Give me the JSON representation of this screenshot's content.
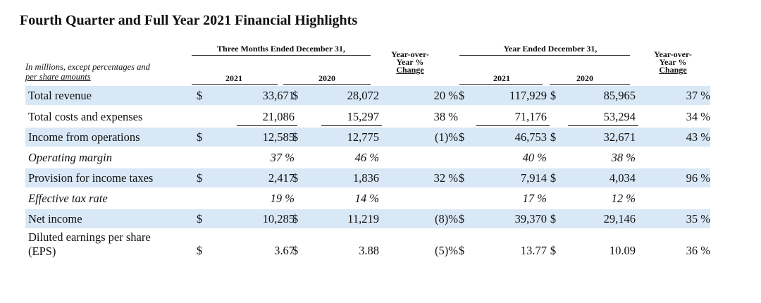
{
  "title": "Fourth Quarter and Full Year 2021 Financial Highlights",
  "note": [
    "In millions, except percentages and",
    "per share amounts"
  ],
  "headers": {
    "three_months": "Three Months Ended December 31,",
    "year_ended": "Year Ended December 31,",
    "yoy": [
      "Year-over-",
      "Year %",
      "Change"
    ],
    "y2021": "2021",
    "y2020": "2020"
  },
  "rows": [
    {
      "label": "Total revenue",
      "italic": false,
      "shade": true,
      "q_cur_sign": "$",
      "q_cur": "33,671",
      "q_prev_sign": "$",
      "q_prev": "28,072",
      "q_chg": "20 %",
      "y_cur_sign": "$",
      "y_cur": "117,929",
      "y_prev_sign": "$",
      "y_prev": "85,965",
      "y_chg": "37 %"
    },
    {
      "label": "Total costs and expenses",
      "italic": false,
      "shade": false,
      "q_cur_sign": "",
      "q_cur": "21,086",
      "q_prev_sign": "",
      "q_prev": "15,297",
      "q_chg": "38 %",
      "y_cur_sign": "",
      "y_cur": "71,176",
      "y_prev_sign": "",
      "y_prev": "53,294",
      "y_chg": "34 %"
    },
    {
      "label": "Income from operations",
      "italic": false,
      "shade": true,
      "q_cur_sign": "$",
      "q_cur": "12,585",
      "q_prev_sign": "$",
      "q_prev": "12,775",
      "q_chg": "(1)%",
      "y_cur_sign": "$",
      "y_cur": "46,753",
      "y_prev_sign": "$",
      "y_prev": "32,671",
      "y_chg": "43 %"
    },
    {
      "label": "Operating margin",
      "italic": true,
      "shade": false,
      "q_cur_sign": "",
      "q_cur": "37 %",
      "q_prev_sign": "",
      "q_prev": "46 %",
      "q_chg": "",
      "y_cur_sign": "",
      "y_cur": "40 %",
      "y_prev_sign": "",
      "y_prev": "38 %",
      "y_chg": ""
    },
    {
      "label": "Provision for income taxes",
      "italic": false,
      "shade": true,
      "q_cur_sign": "$",
      "q_cur": "2,417",
      "q_prev_sign": "$",
      "q_prev": "1,836",
      "q_chg": "32 %",
      "y_cur_sign": "$",
      "y_cur": "7,914",
      "y_prev_sign": "$",
      "y_prev": "4,034",
      "y_chg": "96 %"
    },
    {
      "label": "Effective tax rate",
      "italic": true,
      "shade": false,
      "q_cur_sign": "",
      "q_cur": "19 %",
      "q_prev_sign": "",
      "q_prev": "14 %",
      "q_chg": "",
      "y_cur_sign": "",
      "y_cur": "17 %",
      "y_prev_sign": "",
      "y_prev": "12 %",
      "y_chg": ""
    },
    {
      "label": "Net income",
      "italic": false,
      "shade": true,
      "q_cur_sign": "$",
      "q_cur": "10,285",
      "q_prev_sign": "$",
      "q_prev": "11,219",
      "q_chg": "(8)%",
      "y_cur_sign": "$",
      "y_cur": "39,370",
      "y_prev_sign": "$",
      "y_prev": "29,146",
      "y_chg": "35 %"
    },
    {
      "label": [
        "Diluted earnings per share",
        "(EPS)"
      ],
      "italic": false,
      "shade": false,
      "q_cur_sign": "$",
      "q_cur": "3.67",
      "q_prev_sign": "$",
      "q_prev": "3.88",
      "q_chg": "(5)%",
      "y_cur_sign": "$",
      "y_cur": "13.77",
      "y_prev_sign": "$",
      "y_prev": "10.09",
      "y_chg": "36 %"
    }
  ]
}
